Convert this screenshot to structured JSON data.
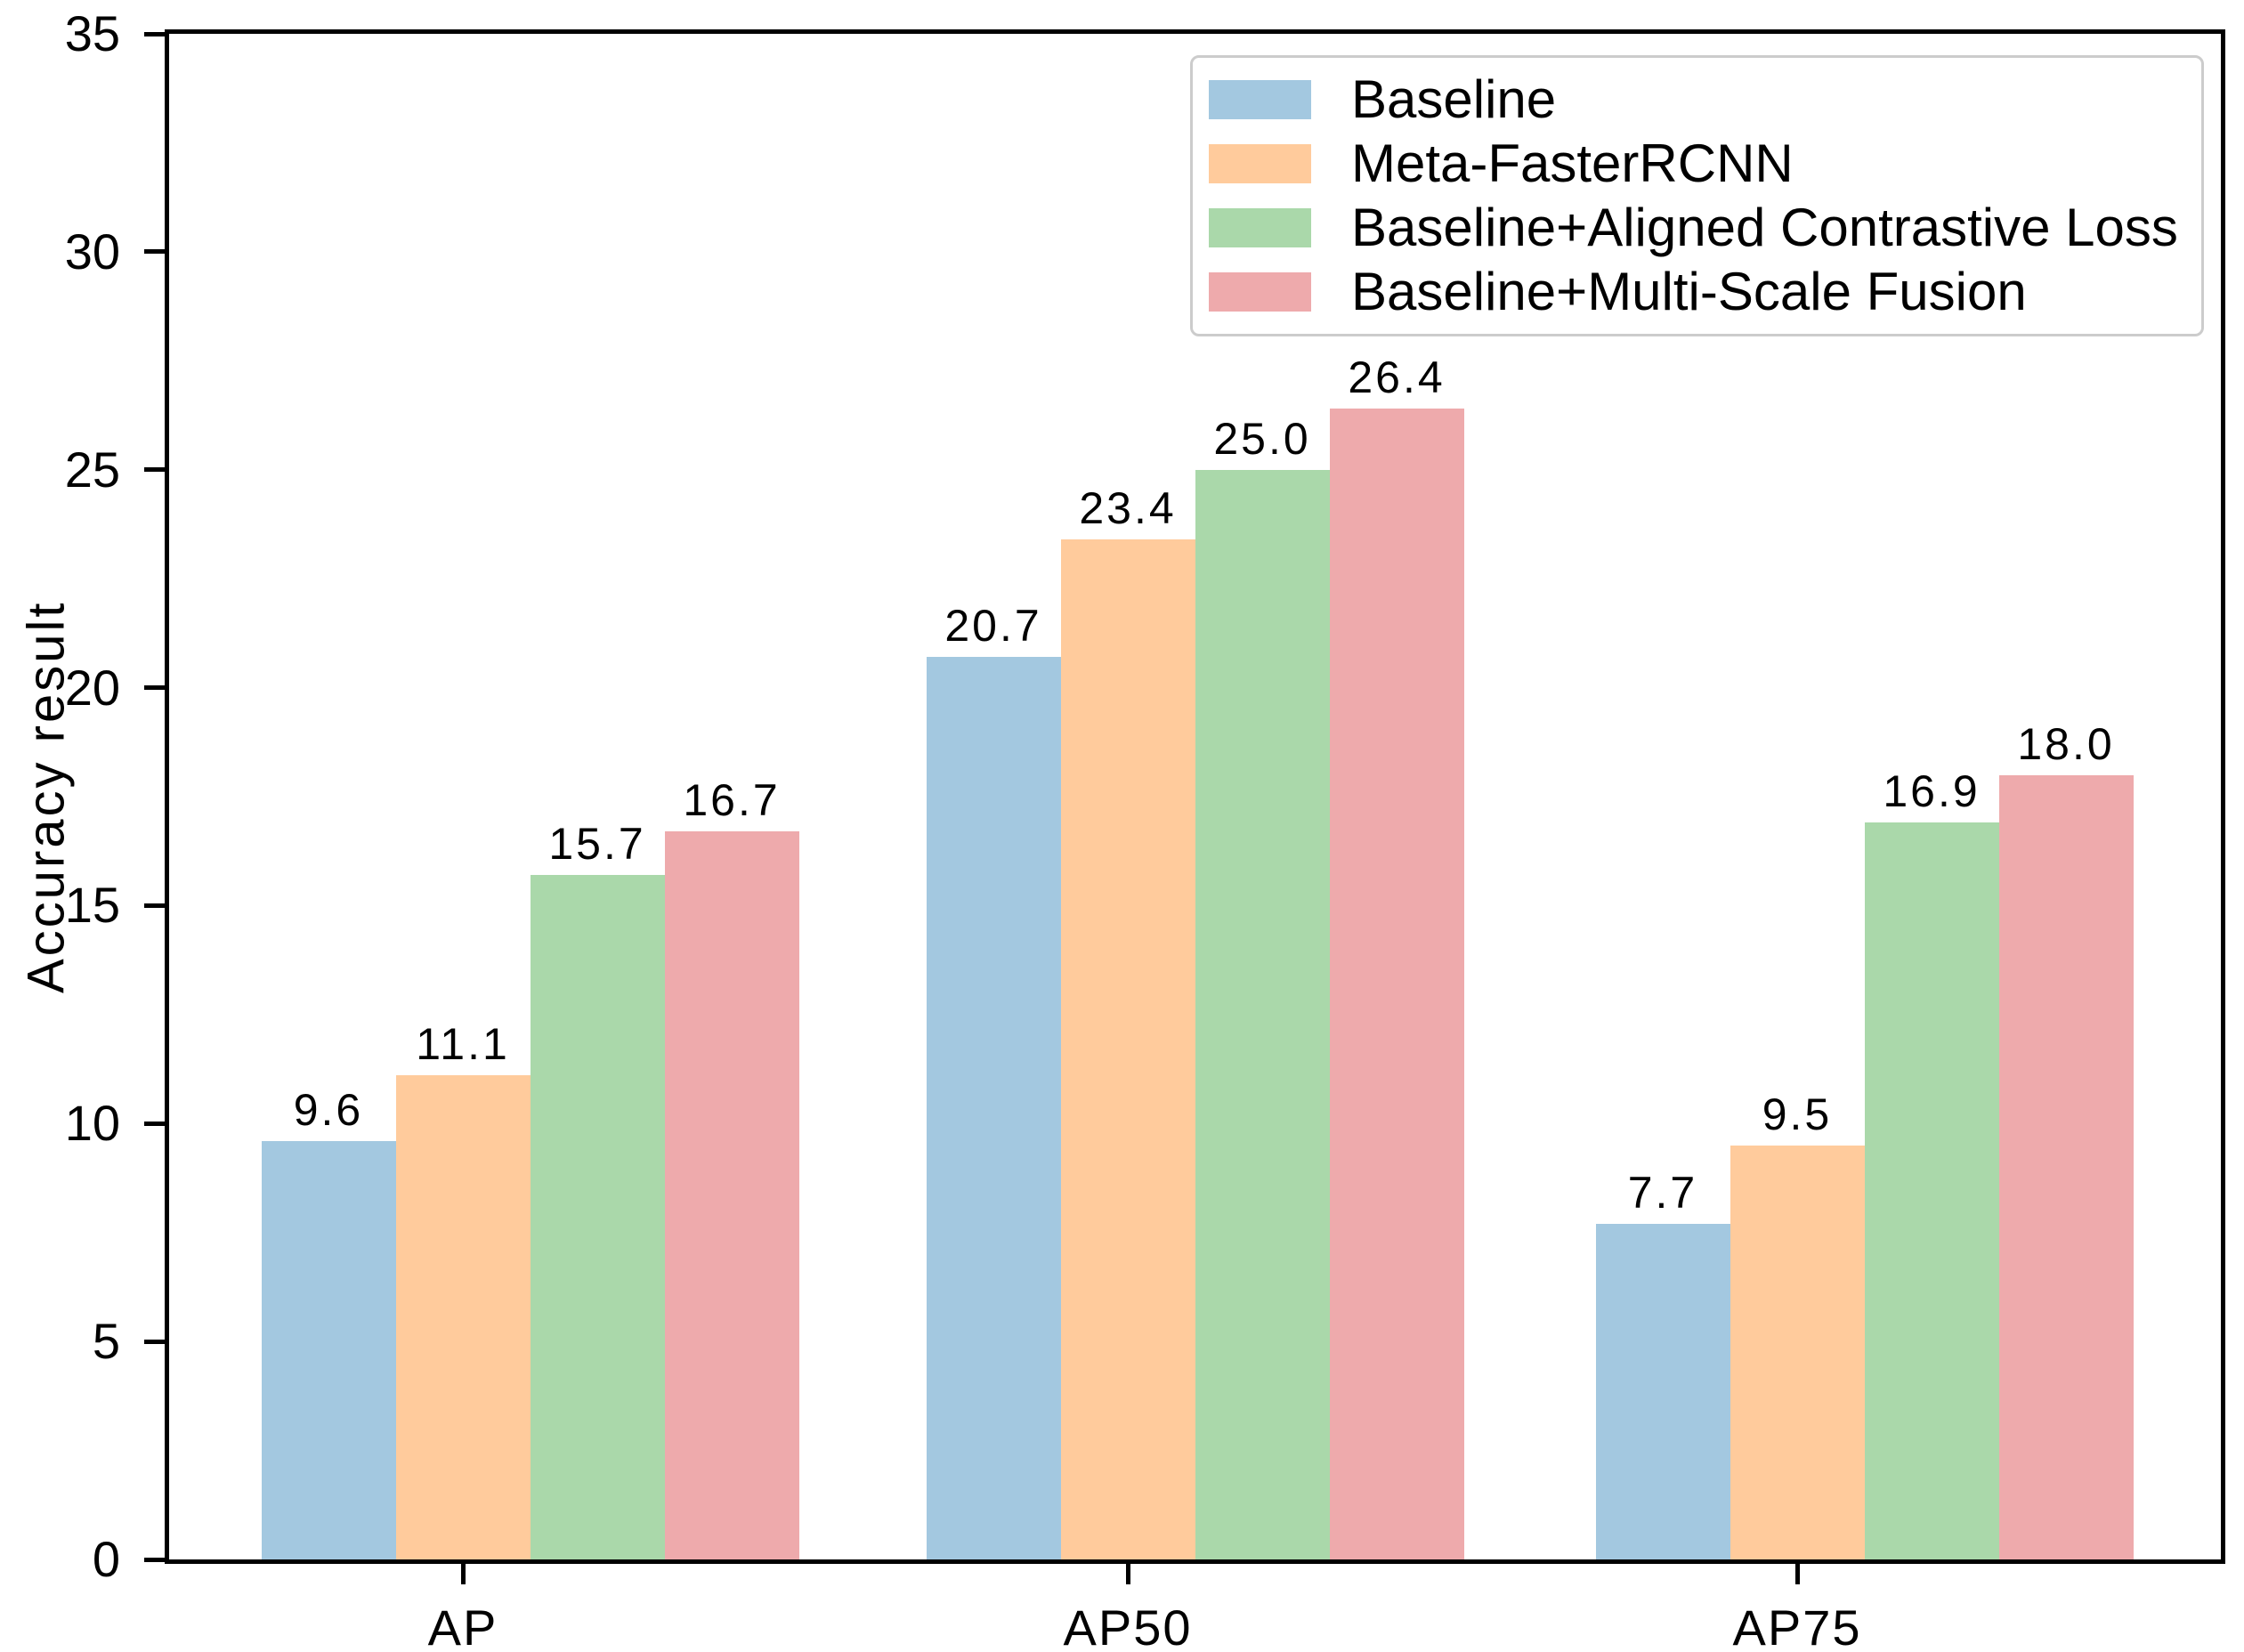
{
  "figure": {
    "background": "#ffffff",
    "axis_color": "#000000"
  },
  "chart_data": {
    "type": "bar",
    "title": "",
    "xlabel": "",
    "ylabel": "Accuracy result",
    "categories": [
      "AP",
      "AP50",
      "AP75"
    ],
    "series": [
      {
        "name": "Baseline",
        "color": "#a3c8e0",
        "values": [
          9.6,
          20.7,
          7.7
        ],
        "value_labels": [
          "9.6",
          "20.7",
          "7.7"
        ]
      },
      {
        "name": "Meta-FasterRCNN",
        "color": "#ffcb9c",
        "values": [
          11.1,
          23.4,
          9.5
        ],
        "value_labels": [
          "11.1",
          "23.4",
          "9.5"
        ]
      },
      {
        "name": "Baseline+Aligned Contrastive Loss",
        "color": "#aad8aa",
        "values": [
          15.7,
          25.0,
          16.9
        ],
        "value_labels": [
          "15.7",
          "25.0",
          "16.9"
        ]
      },
      {
        "name": "Baseline+Multi-Scale Fusion",
        "color": "#eeaaac",
        "values": [
          16.7,
          26.4,
          18.0
        ],
        "value_labels": [
          "16.7",
          "26.4",
          "18.0"
        ]
      }
    ],
    "ylim": [
      0,
      35
    ],
    "yticks": [
      "0",
      "5",
      "10",
      "15",
      "20",
      "25",
      "30",
      "35"
    ],
    "grid": false,
    "legend": {
      "position": "upper right",
      "border_color": "#cccccc",
      "background": "#ffffff"
    }
  }
}
